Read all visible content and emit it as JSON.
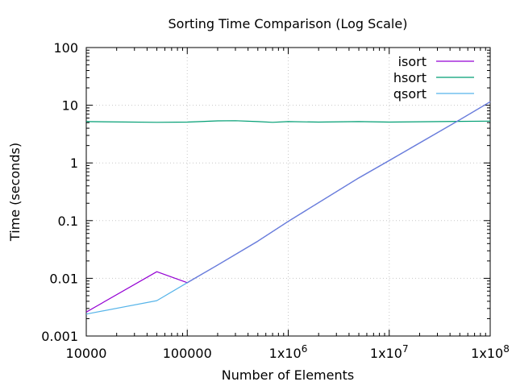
{
  "chart_data": {
    "type": "line",
    "title": "Sorting Time Comparison (Log Scale)",
    "xlabel": "Number of Elements",
    "ylabel": "Time (seconds)",
    "xscale": "log",
    "yscale": "log",
    "xlim": [
      10000,
      100000000
    ],
    "ylim": [
      0.001,
      100
    ],
    "x_ticks": [
      {
        "value": 10000,
        "label": "10000"
      },
      {
        "value": 100000,
        "label": "100000"
      },
      {
        "value": 1000000,
        "label": "1x10^6"
      },
      {
        "value": 10000000,
        "label": "1x10^7"
      },
      {
        "value": 100000000,
        "label": "1x10^8"
      }
    ],
    "y_ticks": [
      {
        "value": 0.001,
        "label": "0.001"
      },
      {
        "value": 0.01,
        "label": "0.01"
      },
      {
        "value": 0.1,
        "label": "0.1"
      },
      {
        "value": 1,
        "label": "1"
      },
      {
        "value": 10,
        "label": "10"
      },
      {
        "value": 100,
        "label": "100"
      }
    ],
    "grid": true,
    "legend_position": "top-right",
    "series": [
      {
        "name": "isort",
        "color": "#9400d3",
        "points": [
          [
            10000,
            0.0026
          ],
          [
            50000,
            0.013
          ],
          [
            100000,
            0.0084
          ],
          [
            200000,
            0.017
          ],
          [
            500000,
            0.044
          ],
          [
            1000000,
            0.097
          ],
          [
            5000000,
            0.55
          ],
          [
            10000000,
            1.1
          ],
          [
            50000000,
            5.6
          ],
          [
            100000000,
            11.5
          ]
        ]
      },
      {
        "name": "hsort",
        "color": "#009e73",
        "points": [
          [
            10000,
            5.2
          ],
          [
            50000,
            5.05
          ],
          [
            100000,
            5.1
          ],
          [
            200000,
            5.35
          ],
          [
            300000,
            5.4
          ],
          [
            500000,
            5.2
          ],
          [
            700000,
            5.05
          ],
          [
            1000000,
            5.2
          ],
          [
            2000000,
            5.1
          ],
          [
            5000000,
            5.2
          ],
          [
            10000000,
            5.1
          ],
          [
            50000000,
            5.25
          ],
          [
            100000000,
            5.3
          ]
        ]
      },
      {
        "name": "qsort",
        "color": "#56b4e9",
        "points": [
          [
            10000,
            0.0024
          ],
          [
            50000,
            0.0041
          ],
          [
            100000,
            0.0084
          ],
          [
            200000,
            0.017
          ],
          [
            500000,
            0.044
          ],
          [
            1000000,
            0.097
          ],
          [
            5000000,
            0.55
          ],
          [
            10000000,
            1.1
          ],
          [
            50000000,
            5.6
          ],
          [
            100000000,
            11.5
          ]
        ]
      },
      {
        "name": "",
        "color": "#6b7fdb",
        "points": [
          [
            100000,
            0.0084
          ],
          [
            200000,
            0.017
          ],
          [
            500000,
            0.044
          ],
          [
            1000000,
            0.097
          ],
          [
            5000000,
            0.55
          ],
          [
            10000000,
            1.1
          ],
          [
            50000000,
            5.6
          ],
          [
            100000000,
            11.5
          ]
        ]
      }
    ]
  }
}
